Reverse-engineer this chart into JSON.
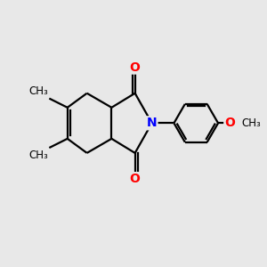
{
  "background_color": "#e8e8e8",
  "bond_color": "#000000",
  "oxygen_color": "#ff0000",
  "nitrogen_color": "#0000ff",
  "line_width": 1.6,
  "font_size_atom": 10,
  "font_size_label": 8.5,
  "figsize": [
    3.0,
    3.0
  ],
  "dpi": 100,
  "xlim": [
    0,
    10
  ],
  "ylim": [
    0,
    10
  ]
}
